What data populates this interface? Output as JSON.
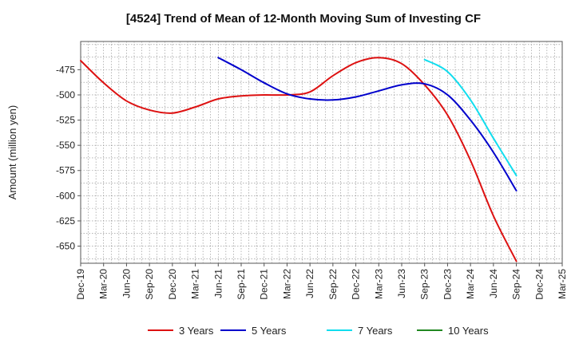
{
  "chart_data": {
    "type": "line",
    "title": "[4524]  Trend of Mean of 12-Month Moving Sum of Investing CF",
    "xlabel": "",
    "ylabel": "Amount (million yen)",
    "x_tick_labels": [
      "Dec-19",
      "Mar-20",
      "Jun-20",
      "Sep-20",
      "Dec-20",
      "Mar-21",
      "Jun-21",
      "Sep-21",
      "Dec-21",
      "Mar-22",
      "Jun-22",
      "Sep-22",
      "Dec-22",
      "Mar-23",
      "Jun-23",
      "Sep-23",
      "Dec-23",
      "Mar-24",
      "Jun-24",
      "Sep-24",
      "Dec-24",
      "Mar-25"
    ],
    "y_ticks": [
      -475,
      -500,
      -525,
      -550,
      -575,
      -600,
      -625,
      -650
    ],
    "y_tick_labels": [
      "-475",
      "-500",
      "-525",
      "-550",
      "-575",
      "-600",
      "-625",
      "-650"
    ],
    "ylim": [
      -667,
      -447
    ],
    "grid": true,
    "legend_position": "bottom",
    "series": [
      {
        "name": "3 Years",
        "color": "#dd1111",
        "x_index": [
          0,
          1,
          2,
          3,
          4,
          5,
          6,
          7,
          8,
          9,
          10,
          11,
          12,
          13,
          14,
          15,
          16,
          17,
          18,
          19
        ],
        "values": [
          -466,
          -488,
          -506,
          -515,
          -518,
          -512,
          -504,
          -501,
          -500,
          -500,
          -497,
          -481,
          -468,
          -463,
          -469,
          -490,
          -520,
          -565,
          -620,
          -665
        ]
      },
      {
        "name": "5 Years",
        "color": "#0000cc",
        "x_index": [
          6,
          7,
          8,
          9,
          10,
          11,
          12,
          13,
          14,
          15,
          16,
          17,
          18,
          19
        ],
        "values": [
          -463,
          -475,
          -488,
          -499,
          -504,
          -505,
          -502,
          -496,
          -490,
          -489,
          -500,
          -525,
          -557,
          -595
        ]
      },
      {
        "name": "7 Years",
        "color": "#11ddee",
        "x_index": [
          15,
          16,
          17,
          18,
          19
        ],
        "values": [
          -465,
          -477,
          -505,
          -543,
          -580
        ]
      },
      {
        "name": "10 Years",
        "color": "#228822",
        "x_index": [],
        "values": []
      }
    ]
  }
}
